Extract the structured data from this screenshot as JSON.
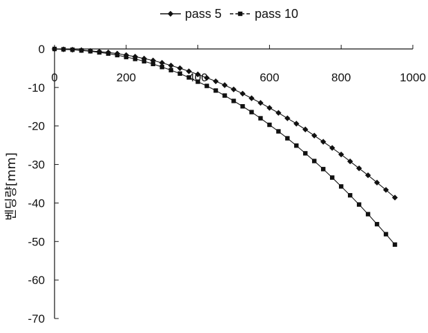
{
  "chart_data": {
    "type": "line",
    "title": "",
    "xlabel": "",
    "ylabel": "벤딩량[mm]",
    "xlim": [
      0,
      1000
    ],
    "ylim": [
      -70,
      0
    ],
    "x_axis_position": "top",
    "grid": false,
    "legend_position": "top-center",
    "xticks": [
      "0",
      "200",
      "400",
      "600",
      "800",
      "1000"
    ],
    "yticks": [
      "0",
      "-10",
      "-20",
      "-30",
      "-40",
      "-50",
      "-60",
      "-70"
    ],
    "x": [
      0,
      25,
      50,
      75,
      100,
      125,
      150,
      175,
      200,
      225,
      250,
      275,
      300,
      325,
      350,
      375,
      400,
      425,
      450,
      475,
      500,
      525,
      550,
      575,
      600,
      625,
      650,
      675,
      700,
      725,
      750,
      775,
      800,
      825,
      850,
      875,
      900,
      925,
      950
    ],
    "series": [
      {
        "name": "pass 5",
        "marker": "diamond",
        "color": "#111111",
        "values": [
          0,
          -0.1,
          -0.2,
          -0.3,
          -0.5,
          -0.7,
          -0.9,
          -1.2,
          -1.6,
          -2.0,
          -2.5,
          -3.0,
          -3.6,
          -4.3,
          -5.0,
          -5.8,
          -6.6,
          -7.5,
          -8.4,
          -9.4,
          -10.5,
          -11.6,
          -12.8,
          -14.0,
          -15.3,
          -16.6,
          -18.0,
          -19.4,
          -20.9,
          -22.5,
          -24.1,
          -25.7,
          -27.4,
          -29.2,
          -31.0,
          -32.8,
          -34.7,
          -36.6,
          -38.6
        ]
      },
      {
        "name": "pass 10",
        "marker": "square",
        "color": "#111111",
        "values": [
          0,
          -0.1,
          -0.2,
          -0.4,
          -0.6,
          -0.9,
          -1.2,
          -1.6,
          -2.1,
          -2.6,
          -3.2,
          -3.9,
          -4.7,
          -5.5,
          -6.4,
          -7.4,
          -8.5,
          -9.6,
          -10.8,
          -12.1,
          -13.5,
          -14.9,
          -16.4,
          -18.0,
          -19.7,
          -21.4,
          -23.2,
          -25.1,
          -27.1,
          -29.1,
          -31.2,
          -33.4,
          -35.7,
          -38.0,
          -40.4,
          -42.9,
          -45.5,
          -48.1,
          -50.8
        ]
      }
    ]
  }
}
